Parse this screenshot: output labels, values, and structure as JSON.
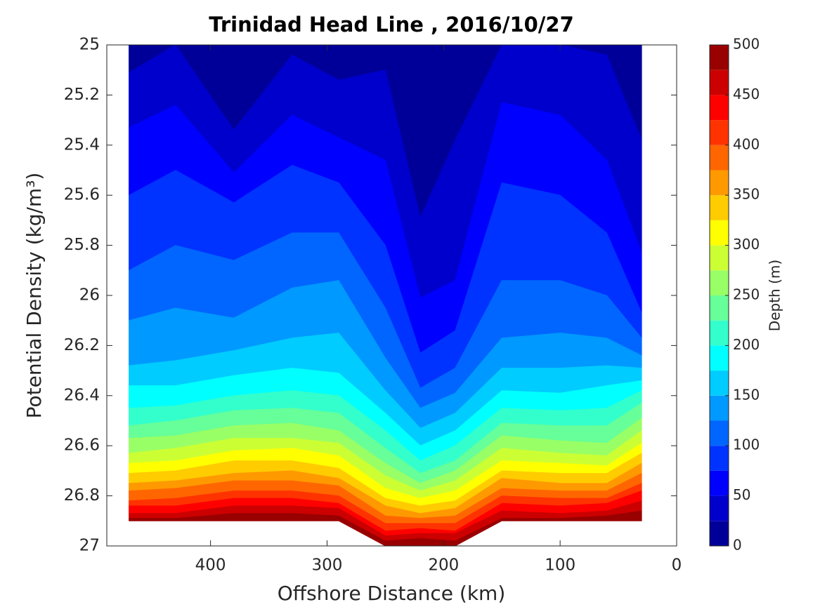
{
  "chart_data": {
    "type": "contourf",
    "title": "Trinidad Head Line , 2016/10/27",
    "x_label": "Offshore Distance (km)",
    "y_label": "Potential Density (kg/m³)",
    "colorbar_label": "Depth (m)",
    "xlim": [
      489,
      0
    ],
    "xticks": [
      400,
      300,
      200,
      100,
      0
    ],
    "ylim": [
      25,
      27
    ],
    "y_reversed": true,
    "yticks": [
      25,
      25.2,
      25.4,
      25.6,
      25.8,
      26,
      26.2,
      26.4,
      26.6,
      26.8,
      27
    ],
    "clim": [
      0,
      500
    ],
    "cticks": [
      0,
      50,
      100,
      150,
      200,
      250,
      300,
      350,
      400,
      450,
      500
    ],
    "levels": [
      0,
      25,
      50,
      75,
      100,
      125,
      150,
      175,
      200,
      225,
      250,
      275,
      300,
      325,
      350,
      375,
      400,
      425,
      450,
      475,
      500
    ],
    "colors": [
      "#000099",
      "#0000cc",
      "#0000ff",
      "#0033ff",
      "#0066ff",
      "#0099ff",
      "#00ccff",
      "#00ffff",
      "#33ffcc",
      "#66ff99",
      "#99ff66",
      "#ccff33",
      "#ffff00",
      "#ffcc00",
      "#ff9900",
      "#ff6600",
      "#ff3300",
      "#ff0000",
      "#cc0000",
      "#990000"
    ],
    "x": [
      470,
      430,
      380,
      330,
      290,
      250,
      220,
      190,
      150,
      100,
      60,
      30
    ],
    "bottom": [
      26.9,
      26.9,
      26.9,
      26.9,
      26.9,
      27,
      27,
      27,
      26.9,
      26.9,
      26.9,
      26.9
    ],
    "profiles": [
      [
        25.11,
        25.33,
        25.6,
        25.9,
        26.1,
        26.28,
        26.36,
        26.45,
        26.52,
        26.57,
        26.63,
        26.67,
        26.71,
        26.75,
        26.78,
        26.82,
        26.84,
        26.87,
        26.89
      ],
      [
        25.0,
        25.24,
        25.5,
        25.8,
        26.05,
        26.26,
        26.36,
        26.44,
        26.5,
        26.56,
        26.61,
        26.66,
        26.7,
        26.74,
        26.77,
        26.81,
        26.84,
        26.87,
        26.89
      ],
      [
        25.34,
        25.51,
        25.63,
        25.86,
        26.09,
        26.22,
        26.32,
        26.4,
        26.46,
        26.52,
        26.57,
        26.62,
        26.66,
        26.71,
        26.74,
        26.78,
        26.81,
        26.84,
        26.87
      ],
      [
        25.04,
        25.28,
        25.48,
        25.75,
        25.97,
        26.17,
        26.29,
        26.38,
        26.45,
        26.51,
        26.57,
        26.61,
        26.66,
        26.7,
        26.74,
        26.78,
        26.81,
        26.84,
        26.87
      ],
      [
        25.14,
        25.37,
        25.55,
        25.75,
        25.94,
        26.15,
        26.31,
        26.4,
        26.47,
        26.54,
        26.59,
        26.64,
        26.69,
        26.73,
        26.76,
        26.8,
        26.83,
        26.85,
        26.88
      ],
      [
        25.1,
        25.46,
        25.8,
        26.05,
        26.25,
        26.38,
        26.47,
        26.54,
        26.61,
        26.67,
        26.72,
        26.77,
        26.81,
        26.84,
        26.88,
        26.91,
        26.94,
        26.96,
        26.98
      ],
      [
        25.69,
        26.01,
        26.23,
        26.37,
        26.45,
        26.53,
        26.6,
        26.66,
        26.71,
        26.75,
        26.78,
        26.81,
        26.84,
        26.87,
        26.89,
        26.91,
        26.93,
        26.95,
        26.97
      ],
      [
        25.38,
        25.94,
        26.14,
        26.29,
        26.39,
        26.47,
        26.54,
        26.6,
        26.66,
        26.7,
        26.74,
        26.78,
        26.82,
        26.85,
        26.88,
        26.91,
        26.94,
        26.95,
        26.98
      ],
      [
        25.0,
        25.23,
        25.55,
        25.94,
        26.17,
        26.29,
        26.38,
        26.45,
        26.51,
        26.56,
        26.61,
        26.66,
        26.7,
        26.73,
        26.77,
        26.8,
        26.83,
        26.86,
        26.89
      ],
      [
        25.0,
        25.28,
        25.6,
        25.94,
        26.15,
        26.29,
        26.39,
        26.46,
        26.52,
        26.58,
        26.63,
        26.67,
        26.71,
        26.75,
        26.78,
        26.81,
        26.84,
        26.87,
        26.89
      ],
      [
        25.04,
        25.46,
        25.75,
        26.0,
        26.17,
        26.28,
        26.36,
        26.45,
        26.52,
        26.59,
        26.64,
        26.68,
        26.71,
        26.75,
        26.78,
        26.81,
        26.83,
        26.86,
        26.88
      ],
      [
        25.38,
        25.83,
        26.07,
        26.17,
        26.24,
        26.29,
        26.34,
        26.38,
        26.43,
        26.49,
        26.54,
        26.59,
        26.63,
        26.67,
        26.71,
        26.75,
        26.78,
        26.82,
        26.86
      ]
    ]
  }
}
